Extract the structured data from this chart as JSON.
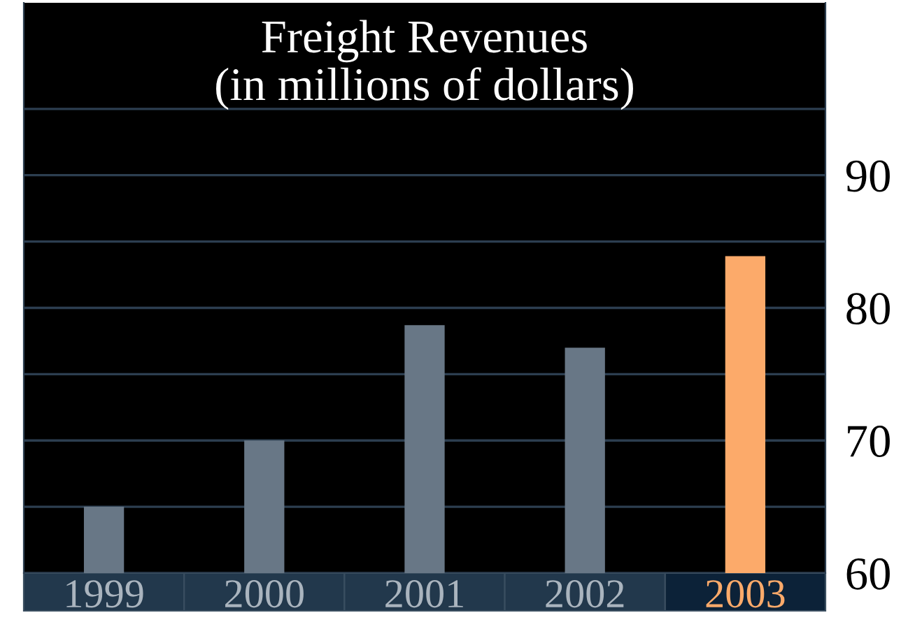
{
  "chart_data": {
    "type": "bar",
    "title": "Freight Revenues\n(in millions of dollars)",
    "categories": [
      "1999",
      "2000",
      "2001",
      "2002",
      "2003"
    ],
    "values": [
      65,
      70,
      78.7,
      77,
      83.9
    ],
    "colors": [
      "#687786",
      "#687786",
      "#687786",
      "#687786",
      "#fcaa6a"
    ],
    "ylim": [
      60,
      103
    ],
    "yticks": [
      60,
      {
        "value": 65,
        "label": null
      },
      70,
      {
        "value": 75,
        "label": null
      },
      80,
      {
        "value": 85,
        "label": null
      },
      90,
      {
        "value": 95,
        "label": null
      }
    ],
    "grid": "y"
  }
}
